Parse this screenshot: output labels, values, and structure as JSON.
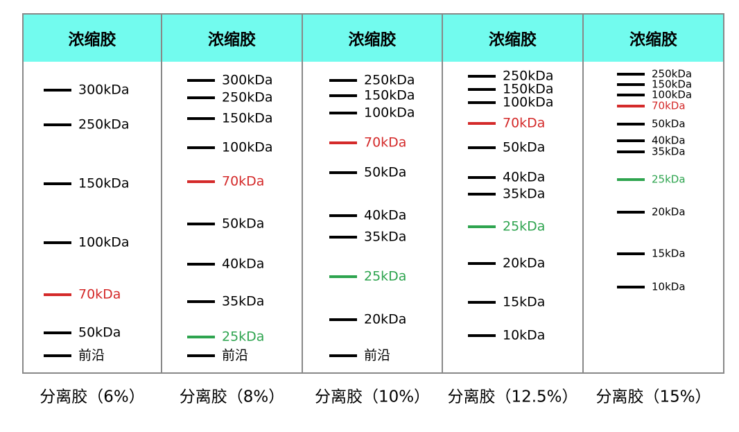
{
  "columns": [
    {
      "header": "浓缩胶",
      "footer": "分离胶（6%）",
      "bands": [
        {
          "label": "300kDa",
          "color": "#000000"
        },
        {
          "label": "250kDa",
          "color": "#000000"
        },
        {
          "label": "150kDa",
          "color": "#000000"
        },
        {
          "label": "100kDa",
          "color": "#000000"
        },
        {
          "label": "70kDa",
          "color": "#d42a2a"
        },
        {
          "label": "50kDa",
          "color": "#000000"
        },
        {
          "label": "前沿",
          "color": "#000000"
        }
      ]
    },
    {
      "header": "浓缩胶",
      "footer": "分离胶（8%）",
      "bands": [
        {
          "label": "300kDa",
          "color": "#000000"
        },
        {
          "label": "250kDa",
          "color": "#000000"
        },
        {
          "label": "150kDa",
          "color": "#000000"
        },
        {
          "label": "100kDa",
          "color": "#000000"
        },
        {
          "label": "70kDa",
          "color": "#d42a2a"
        },
        {
          "label": "50kDa",
          "color": "#000000"
        },
        {
          "label": "40kDa",
          "color": "#000000"
        },
        {
          "label": "35kDa",
          "color": "#000000"
        },
        {
          "label": "25kDa",
          "color": "#2ea44f"
        },
        {
          "label": "前沿",
          "color": "#000000"
        }
      ]
    },
    {
      "header": "浓缩胶",
      "footer": "分离胶（10%）",
      "bands": [
        {
          "label": "250kDa",
          "color": "#000000"
        },
        {
          "label": "150kDa",
          "color": "#000000"
        },
        {
          "label": "100kDa",
          "color": "#000000"
        },
        {
          "label": "70kDa",
          "color": "#d42a2a"
        },
        {
          "label": "50kDa",
          "color": "#000000"
        },
        {
          "label": "40kDa",
          "color": "#000000"
        },
        {
          "label": "35kDa",
          "color": "#000000"
        },
        {
          "label": "25kDa",
          "color": "#2ea44f"
        },
        {
          "label": "20kDa",
          "color": "#000000"
        },
        {
          "label": "前沿",
          "color": "#000000"
        }
      ]
    },
    {
      "header": "浓缩胶",
      "footer": "分离胶（12.5%）",
      "bands": [
        {
          "label": "250kDa",
          "color": "#000000"
        },
        {
          "label": "150kDa",
          "color": "#000000"
        },
        {
          "label": "100kDa",
          "color": "#000000"
        },
        {
          "label": "70kDa",
          "color": "#d42a2a"
        },
        {
          "label": "50kDa",
          "color": "#000000"
        },
        {
          "label": "40kDa",
          "color": "#000000"
        },
        {
          "label": "35kDa",
          "color": "#000000"
        },
        {
          "label": "25kDa",
          "color": "#2ea44f"
        },
        {
          "label": "20kDa",
          "color": "#000000"
        },
        {
          "label": "15kDa",
          "color": "#000000"
        },
        {
          "label": "10kDa",
          "color": "#000000"
        }
      ]
    },
    {
      "header": "浓缩胶",
      "footer": "分离胶（15%）",
      "bands": [
        {
          "label": "250kDa",
          "color": "#000000"
        },
        {
          "label": "150kDa",
          "color": "#000000"
        },
        {
          "label": "100kDa",
          "color": "#000000"
        },
        {
          "label": "70kDa",
          "color": "#d42a2a"
        },
        {
          "label": "50kDa",
          "color": "#000000"
        },
        {
          "label": "40kDa",
          "color": "#000000"
        },
        {
          "label": "35kDa",
          "color": "#000000"
        },
        {
          "label": "25kDa",
          "color": "#2ea44f"
        },
        {
          "label": "20kDa",
          "color": "#000000"
        },
        {
          "label": "15kDa",
          "color": "#000000"
        },
        {
          "label": "10kDa",
          "color": "#000000"
        }
      ]
    }
  ]
}
